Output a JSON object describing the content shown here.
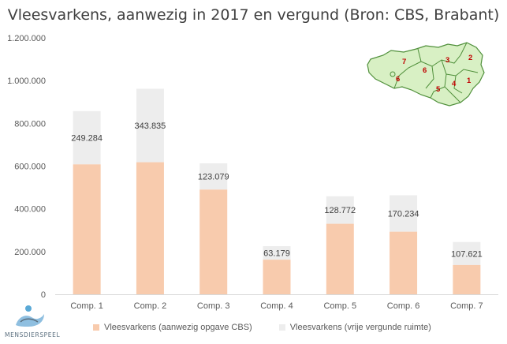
{
  "title": "Vleesvarkens, aanwezig in 2017 en vergund (Bron: CBS, Brabant)",
  "colors": {
    "present": "#f8cbad",
    "permitted": "#ededed",
    "axis": "#d9d9d9",
    "text": "#595959",
    "map_fill": "#d8f0c4",
    "map_stroke": "#4f8f3a",
    "map_label": "#c00000"
  },
  "legend": {
    "present_label": "Vleesvarkens (aanwezig opgave CBS)",
    "permitted_label": "Vleesvarkens (vrije vergunde ruimte)"
  },
  "logo": {
    "text": "MENSDIERSPEEL"
  },
  "map": {
    "labels": [
      "7",
      "3",
      "2",
      "6",
      "6",
      "1",
      "4",
      "5"
    ]
  },
  "chart_data": {
    "type": "bar",
    "stacked": true,
    "categories": [
      "Comp. 1",
      "Comp. 2",
      "Comp. 3",
      "Comp. 4",
      "Comp. 5",
      "Comp. 6",
      "Comp. 7"
    ],
    "series": [
      {
        "name": "Vleesvarkens (aanwezig opgave CBS)",
        "values": [
          608000,
          618000,
          490000,
          162000,
          330000,
          293000,
          137000
        ]
      },
      {
        "name": "Vleesvarkens (vrije vergunde ruimte)",
        "values": [
          249284,
          343835,
          123079,
          63179,
          128772,
          170234,
          107621
        ]
      }
    ],
    "data_labels": [
      "249.284",
      "343.835",
      "123.079",
      "63.179",
      "128.772",
      "170.234",
      "107.621"
    ],
    "y_ticks": [
      "0",
      "200.000",
      "400.000",
      "600.000",
      "800.000",
      "1.000.000",
      "1.200.000"
    ],
    "ylim": [
      0,
      1200000
    ],
    "grid": false,
    "legend_position": "bottom"
  }
}
